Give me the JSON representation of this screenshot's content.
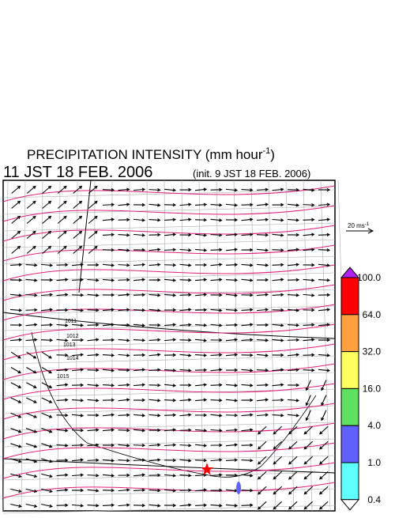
{
  "title": {
    "text": "PRECIPITATION INTENSITY (mm hour",
    "superscript": "-1",
    "end": ")"
  },
  "valid_time": "11 JST 18 FEB. 2006",
  "init_time": "(init. 9 JST 18 FEB. 2006)",
  "scale_arrow": {
    "text": "20 ms",
    "superscript": "-1"
  },
  "isobar_labels": [
    "1011",
    "1012",
    "1013",
    "1014",
    "1015"
  ],
  "colorbar": {
    "over_color": "#b020f0",
    "under_color": "#ffffff",
    "bins": [
      "#ff0000",
      "#ffa040",
      "#ffff60",
      "#60e060",
      "#6060ff",
      "#60ffff"
    ],
    "labels": [
      "100.0",
      "64.0",
      "32.0",
      "16.0",
      "4.0",
      "1.0",
      "0.4"
    ]
  }
}
